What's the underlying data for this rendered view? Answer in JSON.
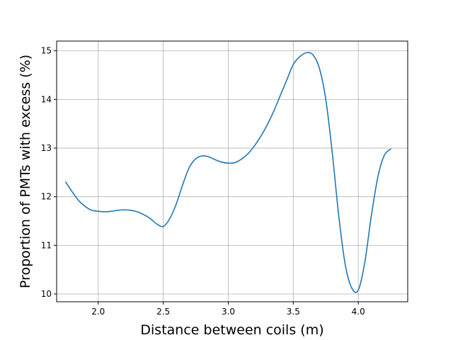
{
  "chart_data": {
    "type": "line",
    "title": "",
    "xlabel": "Distance between coils (m)",
    "ylabel": "Proportion of PMTs with excess (%)",
    "xlim": [
      1.68,
      4.38
    ],
    "ylim": [
      9.84,
      15.2
    ],
    "xticks": [
      2.0,
      2.5,
      3.0,
      3.5,
      4.0
    ],
    "xtick_labels": [
      "2.0",
      "2.5",
      "3.0",
      "3.5",
      "4.0"
    ],
    "yticks": [
      10,
      11,
      12,
      13,
      14,
      15
    ],
    "ytick_labels": [
      "10",
      "11",
      "12",
      "13",
      "14",
      "15"
    ],
    "grid": true,
    "legend": "none",
    "series": [
      {
        "color": "#1f77b4",
        "x": [
          1.75,
          1.8,
          1.85,
          1.9,
          1.95,
          2.0,
          2.05,
          2.1,
          2.15,
          2.2,
          2.25,
          2.3,
          2.35,
          2.4,
          2.45,
          2.5,
          2.55,
          2.6,
          2.65,
          2.7,
          2.75,
          2.8,
          2.85,
          2.9,
          2.95,
          3.0,
          3.05,
          3.1,
          3.15,
          3.2,
          3.25,
          3.3,
          3.35,
          3.4,
          3.45,
          3.5,
          3.55,
          3.6,
          3.65,
          3.7,
          3.75,
          3.8,
          3.85,
          3.9,
          3.95,
          4.0,
          4.05,
          4.1,
          4.15,
          4.2,
          4.25
        ],
        "y": [
          12.3,
          12.1,
          11.92,
          11.8,
          11.72,
          11.7,
          11.69,
          11.7,
          11.72,
          11.73,
          11.72,
          11.69,
          11.63,
          11.55,
          11.44,
          11.39,
          11.55,
          11.85,
          12.25,
          12.6,
          12.78,
          12.84,
          12.82,
          12.76,
          12.71,
          12.69,
          12.7,
          12.77,
          12.88,
          13.04,
          13.24,
          13.48,
          13.76,
          14.08,
          14.4,
          14.72,
          14.88,
          14.96,
          14.92,
          14.65,
          14.0,
          12.9,
          11.6,
          10.6,
          10.12,
          10.08,
          10.65,
          11.6,
          12.4,
          12.85,
          12.98
        ]
      }
    ]
  }
}
